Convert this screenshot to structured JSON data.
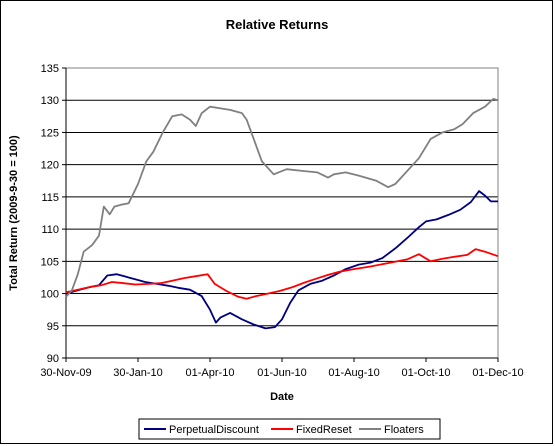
{
  "chart_data": {
    "type": "line",
    "title": "Relative Returns",
    "xlabel": "Date",
    "ylabel": "Total Return (2009-9-30 = 100)",
    "ylim": [
      90,
      135
    ],
    "yticks": [
      90,
      95,
      100,
      105,
      110,
      115,
      120,
      125,
      130,
      135
    ],
    "xlim": [
      "2009-11-30",
      "2010-12-01"
    ],
    "xticks": [
      "30-Nov-09",
      "30-Jan-10",
      "01-Apr-10",
      "01-Jun-10",
      "01-Aug-10",
      "01-Oct-10",
      "01-Dec-10"
    ],
    "grid": "horizontal",
    "legend": "bottom",
    "series": [
      {
        "name": "PerpetualDiscount",
        "color": "#000080",
        "points": [
          [
            "2009-11-30",
            100.0
          ],
          [
            "2009-12-10",
            100.5
          ],
          [
            "2009-12-20",
            101.0
          ],
          [
            "2009-12-28",
            101.3
          ],
          [
            "2010-01-04",
            102.8
          ],
          [
            "2010-01-12",
            103.0
          ],
          [
            "2010-01-20",
            102.6
          ],
          [
            "2010-01-28",
            102.2
          ],
          [
            "2010-02-05",
            101.8
          ],
          [
            "2010-02-15",
            101.5
          ],
          [
            "2010-02-25",
            101.2
          ],
          [
            "2010-03-05",
            100.9
          ],
          [
            "2010-03-15",
            100.6
          ],
          [
            "2010-03-25",
            99.6
          ],
          [
            "2010-04-01",
            97.5
          ],
          [
            "2010-04-06",
            95.5
          ],
          [
            "2010-04-10",
            96.3
          ],
          [
            "2010-04-18",
            97.0
          ],
          [
            "2010-04-28",
            96.0
          ],
          [
            "2010-05-08",
            95.2
          ],
          [
            "2010-05-18",
            94.6
          ],
          [
            "2010-05-26",
            94.8
          ],
          [
            "2010-06-01",
            96.0
          ],
          [
            "2010-06-08",
            98.6
          ],
          [
            "2010-06-15",
            100.5
          ],
          [
            "2010-06-25",
            101.5
          ],
          [
            "2010-07-05",
            102.0
          ],
          [
            "2010-07-15",
            102.8
          ],
          [
            "2010-07-25",
            103.8
          ],
          [
            "2010-08-05",
            104.5
          ],
          [
            "2010-08-15",
            104.8
          ],
          [
            "2010-08-25",
            105.5
          ],
          [
            "2010-09-05",
            107.0
          ],
          [
            "2010-09-15",
            108.6
          ],
          [
            "2010-09-25",
            110.3
          ],
          [
            "2010-10-01",
            111.2
          ],
          [
            "2010-10-10",
            111.5
          ],
          [
            "2010-10-20",
            112.2
          ],
          [
            "2010-10-30",
            113.0
          ],
          [
            "2010-11-08",
            114.2
          ],
          [
            "2010-11-15",
            115.9
          ],
          [
            "2010-11-20",
            115.2
          ],
          [
            "2010-11-25",
            114.3
          ],
          [
            "2010-12-01",
            114.3
          ]
        ]
      },
      {
        "name": "FixedReset",
        "color": "#ff0000",
        "points": [
          [
            "2009-11-30",
            100.2
          ],
          [
            "2009-12-10",
            100.6
          ],
          [
            "2009-12-20",
            101.0
          ],
          [
            "2009-12-30",
            101.3
          ],
          [
            "2010-01-08",
            101.8
          ],
          [
            "2010-01-18",
            101.6
          ],
          [
            "2010-01-28",
            101.4
          ],
          [
            "2010-02-08",
            101.5
          ],
          [
            "2010-02-18",
            101.6
          ],
          [
            "2010-02-28",
            102.0
          ],
          [
            "2010-03-10",
            102.4
          ],
          [
            "2010-03-20",
            102.7
          ],
          [
            "2010-03-30",
            103.0
          ],
          [
            "2010-04-05",
            101.5
          ],
          [
            "2010-04-15",
            100.4
          ],
          [
            "2010-04-25",
            99.5
          ],
          [
            "2010-05-02",
            99.2
          ],
          [
            "2010-05-10",
            99.6
          ],
          [
            "2010-05-20",
            100.0
          ],
          [
            "2010-05-30",
            100.4
          ],
          [
            "2010-06-10",
            101.0
          ],
          [
            "2010-06-20",
            101.7
          ],
          [
            "2010-06-30",
            102.3
          ],
          [
            "2010-07-10",
            102.9
          ],
          [
            "2010-07-20",
            103.4
          ],
          [
            "2010-08-01",
            103.8
          ],
          [
            "2010-08-15",
            104.2
          ],
          [
            "2010-09-01",
            104.8
          ],
          [
            "2010-09-15",
            105.3
          ],
          [
            "2010-09-25",
            106.1
          ],
          [
            "2010-10-05",
            105.0
          ],
          [
            "2010-10-15",
            105.4
          ],
          [
            "2010-10-25",
            105.7
          ],
          [
            "2010-11-05",
            106.0
          ],
          [
            "2010-11-12",
            106.9
          ],
          [
            "2010-11-20",
            106.5
          ],
          [
            "2010-12-01",
            105.8
          ]
        ]
      },
      {
        "name": "Floaters",
        "color": "#808080",
        "points": [
          [
            "2009-11-30",
            99.5
          ],
          [
            "2009-12-05",
            100.5
          ],
          [
            "2009-12-10",
            103.0
          ],
          [
            "2009-12-15",
            106.5
          ],
          [
            "2009-12-22",
            107.5
          ],
          [
            "2009-12-28",
            109.0
          ],
          [
            "2010-01-01",
            113.5
          ],
          [
            "2010-01-06",
            112.3
          ],
          [
            "2010-01-10",
            113.5
          ],
          [
            "2010-01-16",
            113.8
          ],
          [
            "2010-01-22",
            114.0
          ],
          [
            "2010-01-30",
            117.0
          ],
          [
            "2010-02-06",
            120.5
          ],
          [
            "2010-02-12",
            122.0
          ],
          [
            "2010-02-20",
            125.0
          ],
          [
            "2010-02-28",
            127.5
          ],
          [
            "2010-03-08",
            127.8
          ],
          [
            "2010-03-15",
            127.0
          ],
          [
            "2010-03-20",
            126.0
          ],
          [
            "2010-03-25",
            128.0
          ],
          [
            "2010-04-01",
            129.0
          ],
          [
            "2010-04-08",
            128.8
          ],
          [
            "2010-04-18",
            128.5
          ],
          [
            "2010-04-28",
            128.0
          ],
          [
            "2010-05-02",
            127.0
          ],
          [
            "2010-05-08",
            124.0
          ],
          [
            "2010-05-15",
            120.5
          ],
          [
            "2010-05-25",
            118.5
          ],
          [
            "2010-06-05",
            119.3
          ],
          [
            "2010-06-20",
            119.0
          ],
          [
            "2010-07-01",
            118.8
          ],
          [
            "2010-07-10",
            118.0
          ],
          [
            "2010-07-15",
            118.5
          ],
          [
            "2010-07-25",
            118.8
          ],
          [
            "2010-08-05",
            118.3
          ],
          [
            "2010-08-20",
            117.5
          ],
          [
            "2010-08-30",
            116.5
          ],
          [
            "2010-09-05",
            117.0
          ],
          [
            "2010-09-15",
            119.0
          ],
          [
            "2010-09-25",
            121.0
          ],
          [
            "2010-10-05",
            124.0
          ],
          [
            "2010-10-15",
            125.0
          ],
          [
            "2010-10-25",
            125.5
          ],
          [
            "2010-11-01",
            126.3
          ],
          [
            "2010-11-10",
            128.0
          ],
          [
            "2010-11-20",
            129.0
          ],
          [
            "2010-11-27",
            130.2
          ],
          [
            "2010-12-01",
            130.0
          ]
        ]
      }
    ]
  }
}
